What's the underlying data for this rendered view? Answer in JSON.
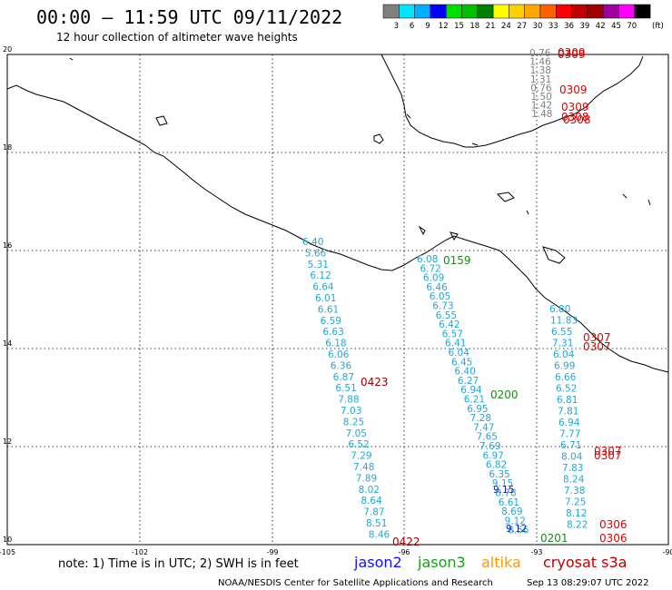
{
  "title": "00:00 – 11:59 UTC 09/11/2022",
  "subtitle": "12 hour collection of altimeter wave heights",
  "colorbar": {
    "labels": [
      "3",
      "6",
      "9",
      "12",
      "15",
      "18",
      "21",
      "24",
      "27",
      "30",
      "33",
      "36",
      "39",
      "42",
      "45",
      "70"
    ],
    "unit": "(ft)",
    "colors": [
      "#808080",
      "#00e5ff",
      "#00b0ff",
      "#0000ff",
      "#00e000",
      "#00c000",
      "#008000",
      "#ffff00",
      "#ffd000",
      "#ffa500",
      "#ff6000",
      "#ff0000",
      "#c00000",
      "#a00000",
      "#a000a0",
      "#ff00ff",
      "#000000"
    ]
  },
  "lon_labels": [
    "-105",
    "-102",
    "-99",
    "-96",
    "-93",
    "-90"
  ],
  "lat_labels": [
    "20",
    "18",
    "16",
    "14",
    "12",
    "10"
  ],
  "note": "note: 1) Time is in UTC; 2) SWH is in feet",
  "legend": [
    {
      "name": "jason2",
      "color": "#1010ff"
    },
    {
      "name": "jason3",
      "color": "#1a9c1a"
    },
    {
      "name": "altika",
      "color": "#ff9900"
    },
    {
      "name": "cryosat s3a",
      "color": "#c00000"
    }
  ],
  "credit_left": "NOAA/NESDIS Center for Satellite Applications and Research",
  "credit_right": "Sep 13 08:29:07 UTC 2022",
  "track_a": [
    "6.40",
    "5.66",
    "5.31",
    "6.12",
    "6.64",
    "6.01",
    "6.61",
    "6.59",
    "6.63",
    "6.18",
    "6.06",
    "6.36",
    "6.87",
    "6.51",
    "7.88",
    "7.03",
    "8.25",
    "7.05",
    "6.52",
    "7.29",
    "7.48",
    "7.89",
    "8.02",
    "8.64",
    "7.87",
    "8.51",
    "8.46"
  ],
  "track_b": [
    "6.08",
    "6.72",
    "6.09",
    "6.46",
    "6.05",
    "6.73",
    "6.55",
    "6.42",
    "6.57",
    "6.41",
    "6.04",
    "6.45",
    "6.40",
    "6.27",
    "6.94",
    "6.21",
    "6.95",
    "7.28",
    "7.47",
    "7.65",
    "7.69",
    "6.97",
    "6.82",
    "6.35",
    "9.15",
    "8.78",
    "6.61",
    "8.69",
    "9.12",
    "8.56"
  ],
  "track_c": [
    "6.80",
    "11.83",
    "6.55",
    "7.31",
    "6.04",
    "6.99",
    "6.66",
    "6.52",
    "6.81",
    "7.81",
    "6.94",
    "7.77",
    "6.71",
    "8.04",
    "7.83",
    "8.24",
    "7.38",
    "7.25",
    "8.12",
    "8.22"
  ],
  "track_d": [
    "0.76",
    "1.46",
    "1.38",
    "1.31",
    "0.76",
    "1.50",
    "1.42",
    "1.48"
  ],
  "times": [
    {
      "label": "0309",
      "color": "#e00000"
    },
    {
      "label": "0309",
      "color": "#e00000"
    },
    {
      "label": "0309",
      "color": "#e00000"
    },
    {
      "label": "0309",
      "color": "#e00000"
    },
    {
      "label": "0308",
      "color": "#e00000"
    },
    {
      "label": "0308",
      "color": "#e00000"
    },
    {
      "label": "0159",
      "color": "#1a8c1a"
    },
    {
      "label": "0307",
      "color": "#e00000"
    },
    {
      "label": "0307",
      "color": "#e00000"
    },
    {
      "label": "0423",
      "color": "#a00000"
    },
    {
      "label": "0200",
      "color": "#1a8c1a"
    },
    {
      "label": "0307",
      "color": "#e00000"
    },
    {
      "label": "0307",
      "color": "#e00000"
    },
    {
      "label": "0306",
      "color": "#e00000"
    },
    {
      "label": "0306",
      "color": "#e00000"
    },
    {
      "label": "0422",
      "color": "#a00000"
    },
    {
      "label": "0201",
      "color": "#1a8c1a"
    }
  ]
}
